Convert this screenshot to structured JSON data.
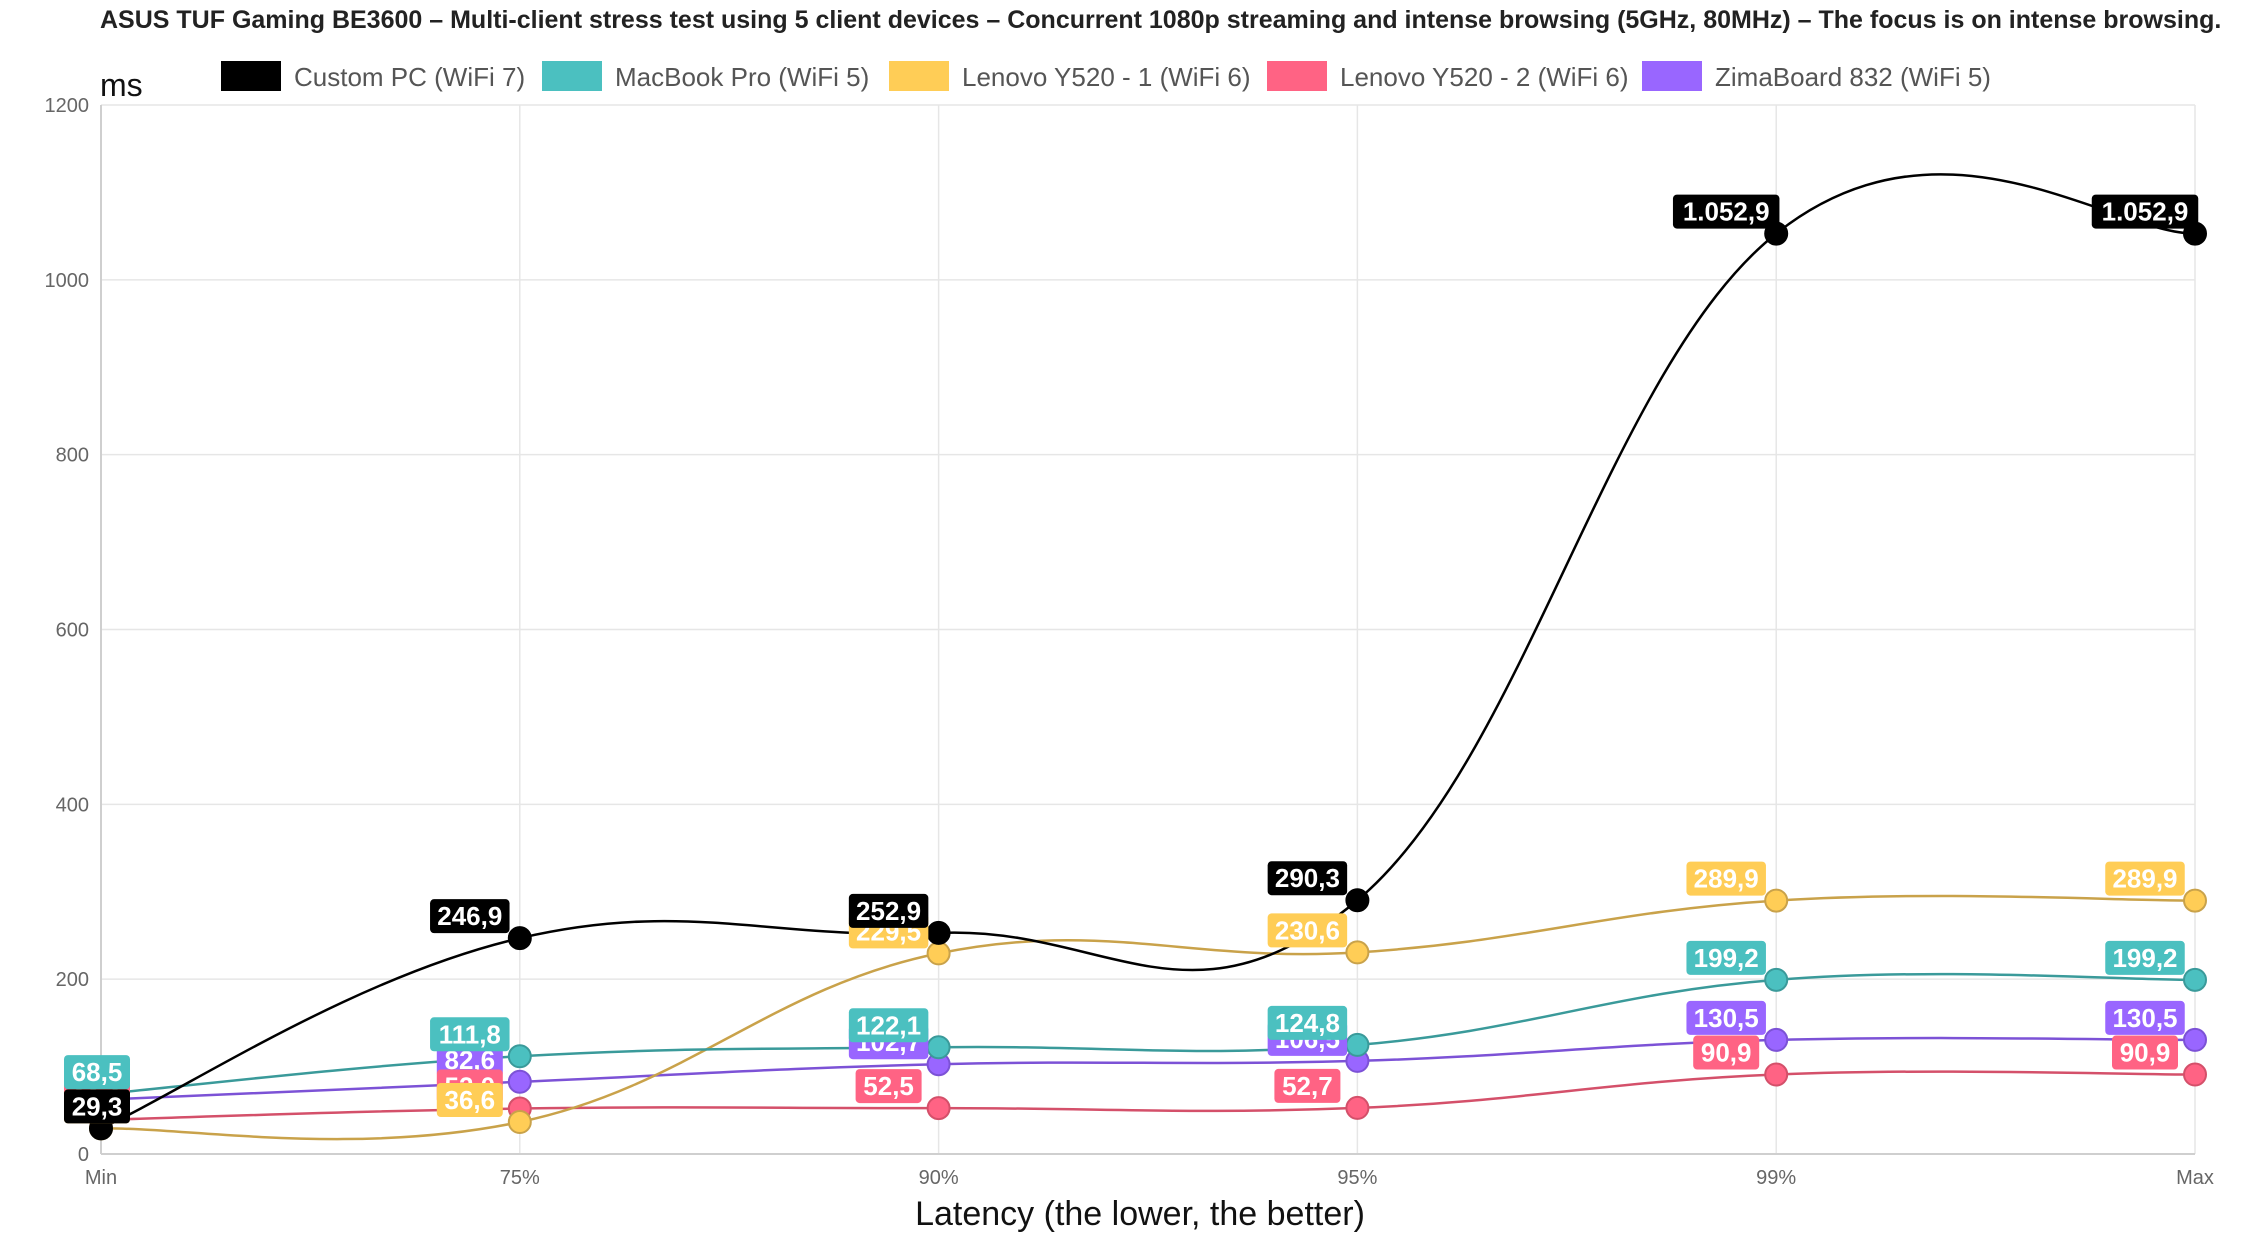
{
  "chart_data": {
    "type": "line",
    "title": "ASUS TUF Gaming BE3600 – Multi-client stress test using 5 client devices – Concurrent 1080p streaming and intense browsing (5GHz, 80MHz) – The focus is on intense browsing.",
    "xlabel": "Latency (the lower, the better)",
    "ylabel": "ms",
    "categories": [
      "Min",
      "75%",
      "90%",
      "95%",
      "99%",
      "Max"
    ],
    "ylim": [
      0,
      1200
    ],
    "yticks": [
      "0",
      "200",
      "400",
      "600",
      "800",
      "1000",
      "1200"
    ],
    "grid": true,
    "legend_position": "top",
    "series": [
      {
        "name": "Custom PC (WiFi 7)",
        "color": "#000000",
        "values": [
          29.3,
          246.9,
          252.9,
          290.3,
          1052.9,
          1052.9
        ],
        "labels": [
          "29,3",
          "246,9",
          "252,9",
          "290,3",
          "1.052,9",
          "1.052,9"
        ]
      },
      {
        "name": "MacBook Pro (WiFi 5)",
        "color": "#4bc0c0",
        "values": [
          68.5,
          111.8,
          122.1,
          124.8,
          199.2,
          199.2
        ],
        "labels": [
          "68,5",
          "111,8",
          "122,1",
          "124,8",
          "199,2",
          "199,2"
        ]
      },
      {
        "name": "Lenovo Y520 - 1 (WiFi 6)",
        "color": "#ffcd56",
        "values": [
          29.3,
          36.6,
          229.5,
          230.6,
          289.9,
          289.9
        ],
        "labels": [
          "29,3",
          "36,6",
          "229,5",
          "230,6",
          "289,9",
          "289,9"
        ]
      },
      {
        "name": "Lenovo Y520 - 2 (WiFi 6)",
        "color": "#ff6384",
        "values": [
          39.0,
          52.0,
          52.5,
          52.7,
          90.9,
          90.9
        ],
        "labels": [
          "39,0",
          "52,0",
          "52,5",
          "52,7",
          "90,9",
          "90,9"
        ]
      },
      {
        "name": "ZimaBoard 832 (WiFi 5)",
        "color": "#9966ff",
        "values": [
          62.0,
          82.6,
          102.7,
          106.5,
          130.5,
          130.5
        ],
        "labels": [
          "62,0",
          "82,6",
          "102,7",
          "106,5",
          "130,5",
          "130,5"
        ]
      }
    ]
  }
}
